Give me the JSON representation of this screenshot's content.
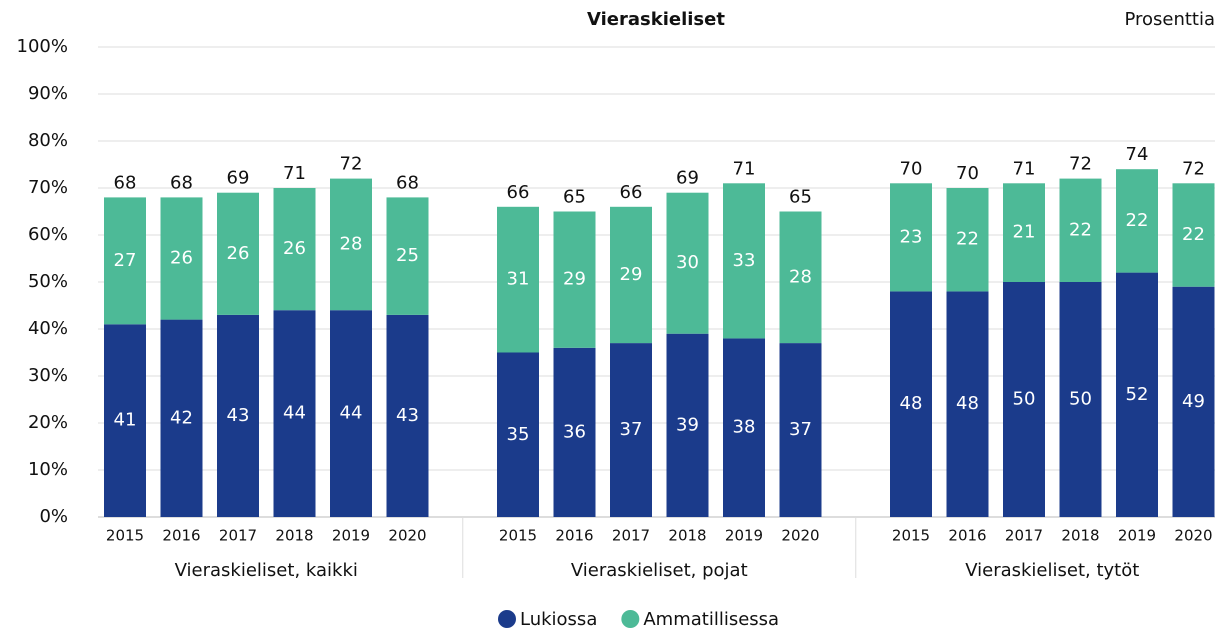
{
  "chart_data": {
    "type": "stacked_bar",
    "title": "Vieraskieliset",
    "y_label": "Prosenttia",
    "categories": [
      "2015",
      "2016",
      "2017",
      "2018",
      "2019",
      "2020",
      "2015",
      "2016",
      "2017",
      "2018",
      "2019",
      "2020",
      "2015",
      "2016",
      "2017",
      "2018",
      "2019",
      "2020"
    ],
    "groups": [
      "Vieraskieliset, kaikki",
      "Vieraskieliset, pojat",
      "Vieraskieliset, tytöt"
    ],
    "series": [
      {
        "name": "Lukiossa",
        "color": "#1b3b8b",
        "values": [
          41,
          42,
          43,
          44,
          44,
          43,
          35,
          36,
          37,
          39,
          38,
          37,
          48,
          48,
          50,
          50,
          52,
          49
        ]
      },
      {
        "name": "Ammatillisessa",
        "color": "#4dba97",
        "values": [
          27,
          26,
          26,
          26,
          28,
          25,
          31,
          29,
          29,
          30,
          33,
          28,
          23,
          22,
          21,
          22,
          22,
          22
        ]
      }
    ],
    "totals": [
      68,
      68,
      69,
      71,
      72,
      68,
      66,
      65,
      66,
      69,
      71,
      65,
      70,
      70,
      71,
      72,
      74,
      72
    ],
    "ylim": [
      0,
      100
    ],
    "yticks": [
      {
        "value": 0,
        "label": "0%"
      },
      {
        "value": 10,
        "label": "10%"
      },
      {
        "value": 20,
        "label": "20%"
      },
      {
        "value": 30,
        "label": "30%"
      },
      {
        "value": 40,
        "label": "40%"
      },
      {
        "value": 50,
        "label": "50%"
      },
      {
        "value": 60,
        "label": "60%"
      },
      {
        "value": 70,
        "label": "70%"
      },
      {
        "value": 80,
        "label": "80%"
      },
      {
        "value": 90,
        "label": "90%"
      },
      {
        "value": 100,
        "label": "100%"
      }
    ],
    "grid": true,
    "legend": "bottom"
  }
}
